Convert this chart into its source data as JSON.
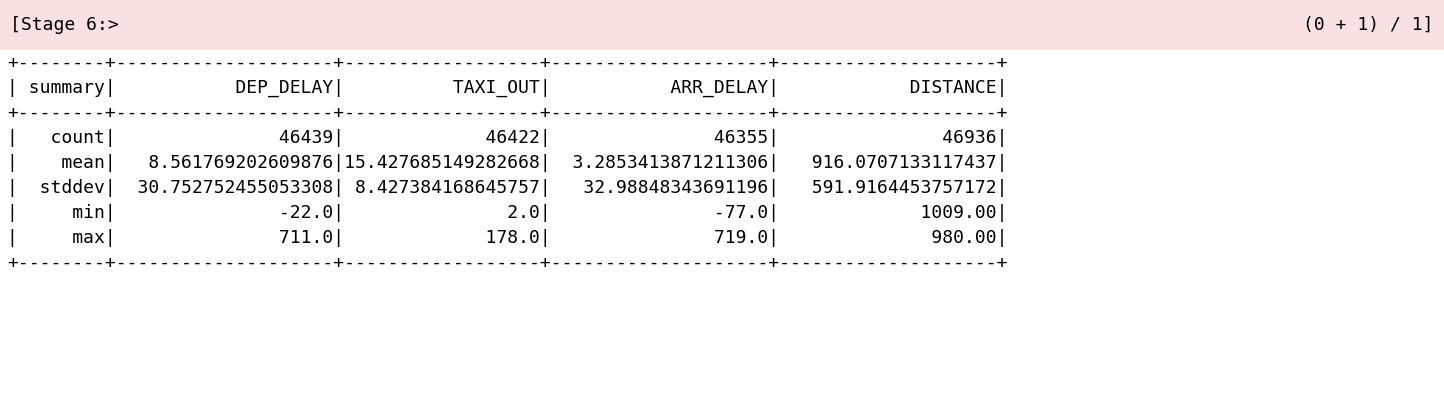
{
  "header_bg": "#f9e0e3",
  "table_bg": "#ffffff",
  "header_left": "[Stage 6:>",
  "header_right": "(0 + 1) / 1]",
  "font_family": "monospace",
  "separator": "+---------+--------------------+-----------------+--------------------+--------------------+",
  "header_row": "|summary|           DEP_DELAY|         TAXI_OUT|           ARR_DELAY|            DISTANCE|",
  "data_rows": [
    "|  count|               46439|            46422|               46355|               46936|",
    "|   mean| 8.561769202609876|15.427685149282668|3.2853413871211306|916.0707133117437|",
    "| stddev|30.752752455053308| 8.427384168645757| 32.98848343691196|591.9164453757172|",
    "|    min|               -22.0|              2.0|               -77.0|            1009.00|",
    "|    max|               711.0|            178.0|              719.0|             980.00|"
  ],
  "figsize": [
    14.44,
    3.94
  ],
  "dpi": 100,
  "font_size": 13.0,
  "header_font_size": 13.0
}
